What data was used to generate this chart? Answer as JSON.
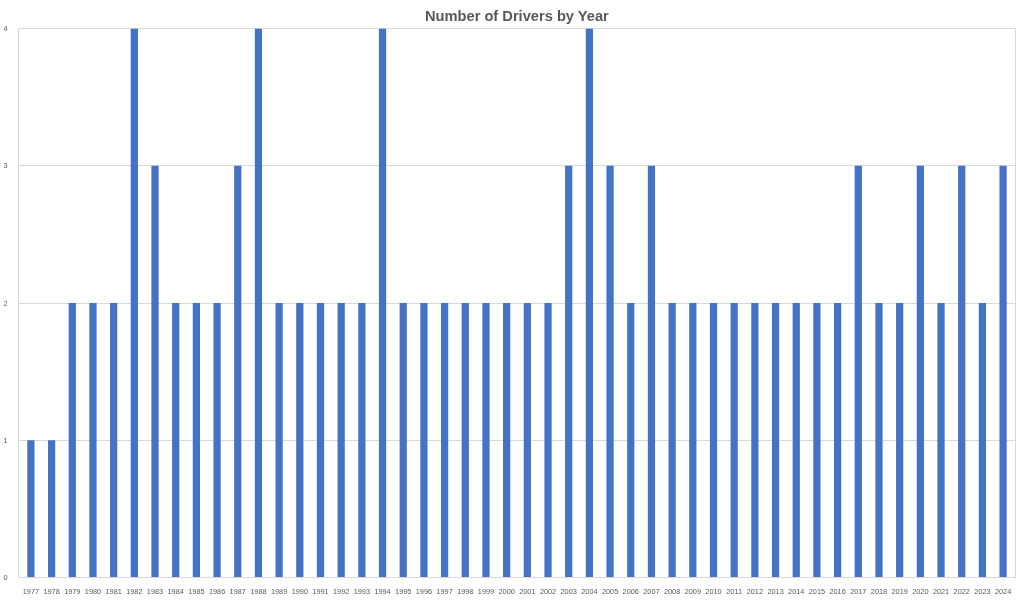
{
  "chart_data": {
    "type": "bar",
    "title": "Number of Drivers by Year",
    "categories": [
      "1977",
      "1978",
      "1979",
      "1980",
      "1981",
      "1982",
      "1983",
      "1984",
      "1985",
      "1986",
      "1987",
      "1988",
      "1989",
      "1990",
      "1991",
      "1992",
      "1993",
      "1994",
      "1995",
      "1996",
      "1997",
      "1998",
      "1999",
      "2000",
      "2001",
      "2002",
      "2003",
      "2004",
      "2005",
      "2006",
      "2007",
      "2008",
      "2009",
      "2010",
      "2011",
      "2012",
      "2013",
      "2014",
      "2015",
      "2016",
      "2017",
      "2018",
      "2019",
      "2020",
      "2021",
      "2022",
      "2023",
      "2024"
    ],
    "values": [
      1,
      1,
      2,
      2,
      2,
      4,
      3,
      2,
      2,
      2,
      3,
      4,
      2,
      2,
      2,
      2,
      2,
      4,
      2,
      2,
      2,
      2,
      2,
      2,
      2,
      2,
      3,
      4,
      3,
      2,
      3,
      2,
      2,
      2,
      2,
      2,
      2,
      2,
      2,
      2,
      3,
      2,
      2,
      3,
      2,
      3,
      2,
      3
    ],
    "color": "#4472c4",
    "ylim": [
      0,
      4
    ],
    "yticks": [
      0,
      1,
      2,
      3,
      4
    ],
    "grid": "y"
  }
}
